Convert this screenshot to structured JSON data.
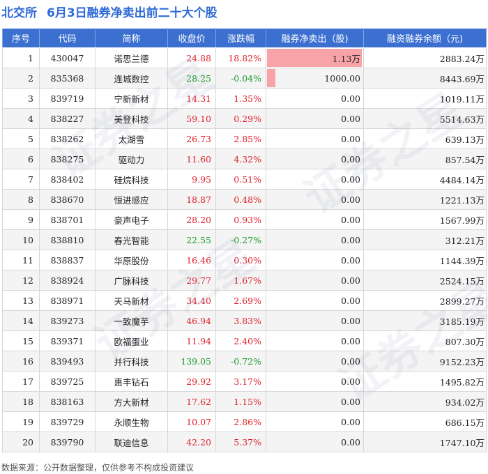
{
  "header": {
    "market": "北交所",
    "title": "6月3日融券净卖出前二十大个股"
  },
  "columns": [
    "序号",
    "代码",
    "简称",
    "收盘价",
    "涨跌幅",
    "融券净卖出（股)",
    "融资融券余额（元)"
  ],
  "chart_data": {
    "type": "table",
    "net_sell_max": 11300,
    "rows": [
      {
        "rank": "1",
        "code": "430047",
        "name": "诺思兰德",
        "close": "24.88",
        "change": "18.82%",
        "dir": "up",
        "net_sell": "1.13万",
        "net_sell_value": 11300,
        "balance": "2883.24万"
      },
      {
        "rank": "2",
        "code": "835368",
        "name": "连城数控",
        "close": "28.25",
        "change": "-0.04%",
        "dir": "down",
        "net_sell": "1000.00",
        "net_sell_value": 1000,
        "balance": "8443.69万"
      },
      {
        "rank": "3",
        "code": "839719",
        "name": "宁新新材",
        "close": "14.31",
        "change": "1.35%",
        "dir": "up",
        "net_sell": "0.00",
        "net_sell_value": 0,
        "balance": "1019.11万"
      },
      {
        "rank": "4",
        "code": "838227",
        "name": "美登科技",
        "close": "59.10",
        "change": "0.29%",
        "dir": "up",
        "net_sell": "0.00",
        "net_sell_value": 0,
        "balance": "5514.63万"
      },
      {
        "rank": "5",
        "code": "838262",
        "name": "太湖雪",
        "close": "26.73",
        "change": "2.85%",
        "dir": "up",
        "net_sell": "0.00",
        "net_sell_value": 0,
        "balance": "639.13万"
      },
      {
        "rank": "6",
        "code": "838275",
        "name": "驱动力",
        "close": "11.60",
        "change": "4.32%",
        "dir": "up",
        "net_sell": "0.00",
        "net_sell_value": 0,
        "balance": "857.54万"
      },
      {
        "rank": "7",
        "code": "838402",
        "name": "硅烷科技",
        "close": "9.95",
        "change": "0.51%",
        "dir": "up",
        "net_sell": "0.00",
        "net_sell_value": 0,
        "balance": "4484.14万"
      },
      {
        "rank": "8",
        "code": "838670",
        "name": "恒进感应",
        "close": "18.87",
        "change": "0.48%",
        "dir": "up",
        "net_sell": "0.00",
        "net_sell_value": 0,
        "balance": "1221.13万"
      },
      {
        "rank": "9",
        "code": "838701",
        "name": "豪声电子",
        "close": "28.20",
        "change": "0.93%",
        "dir": "up",
        "net_sell": "0.00",
        "net_sell_value": 0,
        "balance": "1567.99万"
      },
      {
        "rank": "10",
        "code": "838810",
        "name": "春光智能",
        "close": "22.55",
        "change": "-0.27%",
        "dir": "down",
        "net_sell": "0.00",
        "net_sell_value": 0,
        "balance": "312.21万"
      },
      {
        "rank": "11",
        "code": "838837",
        "name": "华原股份",
        "close": "16.46",
        "change": "0.30%",
        "dir": "up",
        "net_sell": "0.00",
        "net_sell_value": 0,
        "balance": "1144.39万"
      },
      {
        "rank": "12",
        "code": "838924",
        "name": "广脉科技",
        "close": "29.77",
        "change": "1.67%",
        "dir": "up",
        "net_sell": "0.00",
        "net_sell_value": 0,
        "balance": "2524.15万"
      },
      {
        "rank": "13",
        "code": "838971",
        "name": "天马新材",
        "close": "34.40",
        "change": "2.69%",
        "dir": "up",
        "net_sell": "0.00",
        "net_sell_value": 0,
        "balance": "2899.27万"
      },
      {
        "rank": "14",
        "code": "839273",
        "name": "一致魔芋",
        "close": "46.94",
        "change": "3.83%",
        "dir": "up",
        "net_sell": "0.00",
        "net_sell_value": 0,
        "balance": "3185.19万"
      },
      {
        "rank": "15",
        "code": "839371",
        "name": "欧福蛋业",
        "close": "11.94",
        "change": "2.40%",
        "dir": "up",
        "net_sell": "0.00",
        "net_sell_value": 0,
        "balance": "807.30万"
      },
      {
        "rank": "16",
        "code": "839493",
        "name": "并行科技",
        "close": "139.05",
        "change": "-0.72%",
        "dir": "down",
        "net_sell": "0.00",
        "net_sell_value": 0,
        "balance": "9152.23万"
      },
      {
        "rank": "17",
        "code": "839725",
        "name": "惠丰钻石",
        "close": "29.92",
        "change": "3.17%",
        "dir": "up",
        "net_sell": "0.00",
        "net_sell_value": 0,
        "balance": "1495.82万"
      },
      {
        "rank": "18",
        "code": "838163",
        "name": "方大新材",
        "close": "17.62",
        "change": "1.15%",
        "dir": "up",
        "net_sell": "0.00",
        "net_sell_value": 0,
        "balance": "934.02万"
      },
      {
        "rank": "19",
        "code": "839729",
        "name": "永顺生物",
        "close": "10.07",
        "change": "2.86%",
        "dir": "up",
        "net_sell": "0.00",
        "net_sell_value": 0,
        "balance": "686.15万"
      },
      {
        "rank": "20",
        "code": "839790",
        "name": "联迪信息",
        "close": "42.20",
        "change": "5.37%",
        "dir": "up",
        "net_sell": "0.00",
        "net_sell_value": 0,
        "balance": "1747.10万"
      }
    ]
  },
  "footer": "数据来源：公开数据整理，仅供参考不构成投资建议",
  "watermark": "证券之星"
}
